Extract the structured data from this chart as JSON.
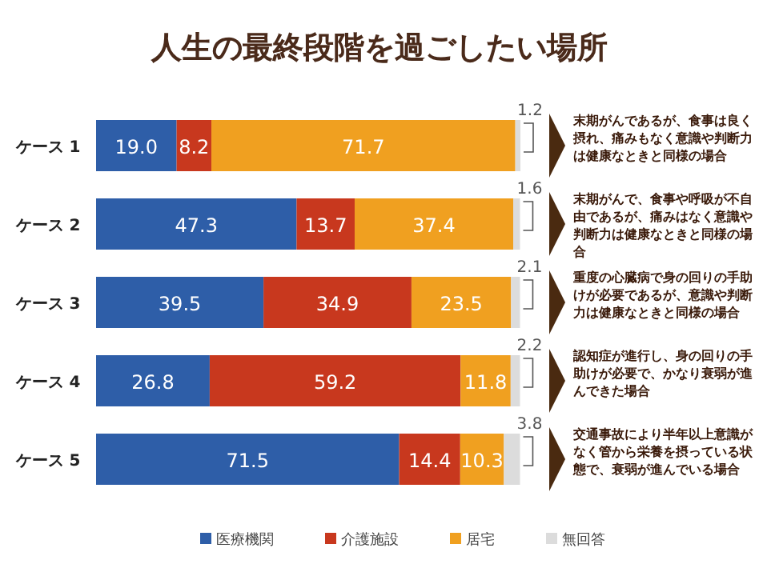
{
  "chart_data": {
    "type": "bar",
    "orientation": "horizontal",
    "stacked": true,
    "title": "人生の最終段階を過ごしたい場所",
    "categories": [
      "ケース 1",
      "ケース 2",
      "ケース 3",
      "ケース 4",
      "ケース 5"
    ],
    "series": [
      {
        "name": "医療機関",
        "color": "#2e5ea8",
        "values": [
          19.0,
          47.3,
          39.5,
          26.8,
          71.5
        ],
        "value_labels": [
          "19.0",
          "47.3",
          "39.5",
          "26.8",
          "71.5"
        ]
      },
      {
        "name": "介護施設",
        "color": "#c8381e",
        "values": [
          8.2,
          13.7,
          34.9,
          59.2,
          14.4
        ],
        "value_labels": [
          "8.2",
          "13.7",
          "34.9",
          "59.2",
          "14.4"
        ]
      },
      {
        "name": "居宅",
        "color": "#f0a020",
        "values": [
          71.7,
          37.4,
          23.5,
          11.8,
          10.3
        ],
        "value_labels": [
          "71.7",
          "37.4",
          "23.5",
          "11.8",
          "10.3"
        ]
      },
      {
        "name": "無回答",
        "color": "#dcdcdc",
        "values": [
          1.2,
          1.6,
          2.1,
          2.2,
          3.8
        ],
        "value_labels": [
          "1.2",
          "1.6",
          "2.1",
          "2.2",
          "3.8"
        ]
      }
    ],
    "legend": "bottom",
    "annotations": [
      "末期がんであるが、食事は良く摂れ、痛みもなく意識や判断力は健康なときと同様の場合",
      "末期がんで、食事や呼吸が不自由であるが、痛みはなく意識や判断力は健康なときと同様の場合",
      "重度の心臓病で身の回りの手助けが必要であるが、意識や判断力は健康なときと同様の場合",
      "認知症が進行し、身の回りの手助けが必要で、かなり衰弱が進んできた場合",
      "交通事故により半年以上意識がなく管から栄養を摂っている状態で、衰弱が進んでいる場合"
    ]
  }
}
